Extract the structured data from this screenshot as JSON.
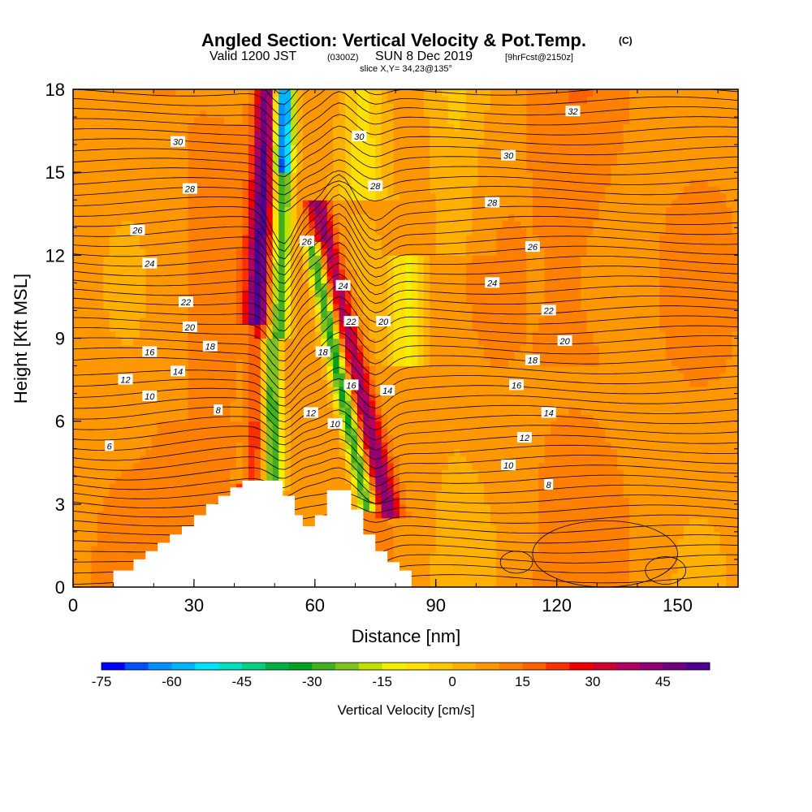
{
  "chart_data": {
    "type": "heatmap",
    "title": "Angled Section: Vertical Velocity & Pot.Temp.",
    "title_mark": "(C)",
    "subtitle": {
      "valid": "Valid 1200 JST",
      "zulu": "(0300Z)",
      "date": "SUN 8 Dec 2019",
      "forecast": "[9hrFcst@2150z]"
    },
    "slice_text": "slice X,Y= 34,23@135°",
    "xlabel": "Distance [nm]",
    "ylabel": "Height [Kft MSL]",
    "xlim": [
      0,
      165
    ],
    "ylim": [
      0,
      18
    ],
    "x_ticks": [
      0,
      30,
      60,
      90,
      120,
      150
    ],
    "y_ticks": [
      0,
      3,
      6,
      9,
      12,
      15,
      18
    ],
    "colorbar": {
      "label": "Vertical Velocity [cm/s]",
      "range": [
        -75,
        55
      ],
      "step": 5,
      "tick_labels": [
        "-75",
        "-60",
        "-45",
        "-30",
        "-15",
        "0",
        "15",
        "30",
        "45"
      ],
      "colors": [
        "#0000ff",
        "#0050ff",
        "#0090ff",
        "#00b4ff",
        "#00e0ff",
        "#00e0c0",
        "#00d080",
        "#00b040",
        "#00a020",
        "#40b020",
        "#80c020",
        "#c0e000",
        "#f0f000",
        "#ffe000",
        "#ffc800",
        "#ffb000",
        "#ff9800",
        "#ff8000",
        "#ff6000",
        "#ff3000",
        "#f00000",
        "#d00030",
        "#b00060",
        "#900070",
        "#700080",
        "#500090"
      ]
    },
    "terrain": [
      [
        0,
        0
      ],
      [
        10,
        0
      ],
      [
        10,
        0.6
      ],
      [
        15,
        0.6
      ],
      [
        15,
        1
      ],
      [
        18,
        1
      ],
      [
        18,
        1.3
      ],
      [
        21,
        1.3
      ],
      [
        21,
        1.6
      ],
      [
        24,
        1.6
      ],
      [
        24,
        1.9
      ],
      [
        27,
        1.9
      ],
      [
        27,
        2.2
      ],
      [
        30,
        2.2
      ],
      [
        30,
        2.6
      ],
      [
        33,
        2.6
      ],
      [
        33,
        3
      ],
      [
        36,
        3
      ],
      [
        36,
        3.3
      ],
      [
        39,
        3.3
      ],
      [
        39,
        3.6
      ],
      [
        42,
        3.6
      ],
      [
        42,
        3.85
      ],
      [
        52,
        3.85
      ],
      [
        52,
        3.3
      ],
      [
        55,
        3.3
      ],
      [
        55,
        2.6
      ],
      [
        57,
        2.6
      ],
      [
        57,
        2.2
      ],
      [
        60,
        2.2
      ],
      [
        60,
        2.6
      ],
      [
        63,
        2.6
      ],
      [
        63,
        3.5
      ],
      [
        69,
        3.5
      ],
      [
        69,
        2.8
      ],
      [
        72,
        2.8
      ],
      [
        72,
        1.9
      ],
      [
        75,
        1.9
      ],
      [
        75,
        1.3
      ],
      [
        78,
        1.3
      ],
      [
        78,
        0.9
      ],
      [
        81,
        0.9
      ],
      [
        81,
        0.6
      ],
      [
        84,
        0.6
      ],
      [
        84,
        0
      ],
      [
        165,
        0
      ]
    ],
    "theta_contour_labels": [
      {
        "text": "30",
        "x": 26,
        "y": 16.1
      },
      {
        "text": "30",
        "x": 71,
        "y": 16.3
      },
      {
        "text": "30",
        "x": 108,
        "y": 15.6
      },
      {
        "text": "32",
        "x": 124,
        "y": 17.2
      },
      {
        "text": "28",
        "x": 29,
        "y": 14.4
      },
      {
        "text": "28",
        "x": 75,
        "y": 14.5
      },
      {
        "text": "28",
        "x": 104,
        "y": 13.9
      },
      {
        "text": "26",
        "x": 16,
        "y": 12.9
      },
      {
        "text": "26",
        "x": 58,
        "y": 12.5
      },
      {
        "text": "26",
        "x": 114,
        "y": 12.3
      },
      {
        "text": "24",
        "x": 19,
        "y": 11.7
      },
      {
        "text": "24",
        "x": 67,
        "y": 10.9
      },
      {
        "text": "24",
        "x": 104,
        "y": 11
      },
      {
        "text": "22",
        "x": 28,
        "y": 10.3
      },
      {
        "text": "22",
        "x": 69,
        "y": 9.6
      },
      {
        "text": "22",
        "x": 118,
        "y": 10
      },
      {
        "text": "20",
        "x": 29,
        "y": 9.4
      },
      {
        "text": "20",
        "x": 77,
        "y": 9.6
      },
      {
        "text": "20",
        "x": 122,
        "y": 8.9
      },
      {
        "text": "18",
        "x": 34,
        "y": 8.7
      },
      {
        "text": "18",
        "x": 62,
        "y": 8.5
      },
      {
        "text": "18",
        "x": 114,
        "y": 8.2
      },
      {
        "text": "16",
        "x": 19,
        "y": 8.5
      },
      {
        "text": "16",
        "x": 69,
        "y": 7.3
      },
      {
        "text": "16",
        "x": 110,
        "y": 7.3
      },
      {
        "text": "14",
        "x": 26,
        "y": 7.8
      },
      {
        "text": "14",
        "x": 78,
        "y": 7.1
      },
      {
        "text": "14",
        "x": 118,
        "y": 6.3
      },
      {
        "text": "12",
        "x": 13,
        "y": 7.5
      },
      {
        "text": "12",
        "x": 59,
        "y": 6.3
      },
      {
        "text": "12",
        "x": 112,
        "y": 5.4
      },
      {
        "text": "10",
        "x": 19,
        "y": 6.9
      },
      {
        "text": "10",
        "x": 65,
        "y": 5.9
      },
      {
        "text": "10",
        "x": 108,
        "y": 4.4
      },
      {
        "text": "8",
        "x": 36,
        "y": 6.4
      },
      {
        "text": "8",
        "x": 118,
        "y": 3.7
      },
      {
        "text": "6",
        "x": 9,
        "y": 5.1
      }
    ]
  }
}
